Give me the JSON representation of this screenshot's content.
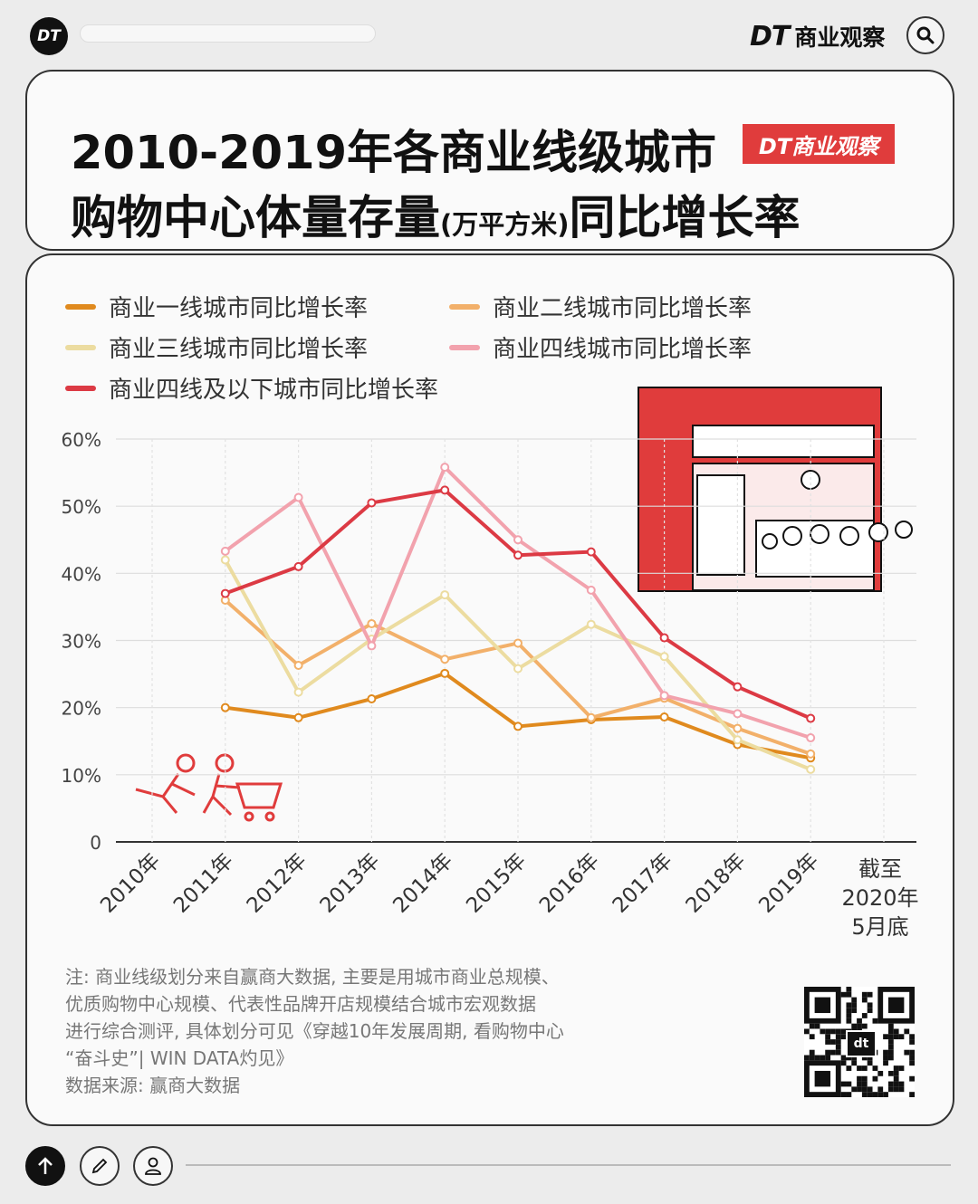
{
  "topbar": {
    "logo_text": "DT",
    "brand_dt": "DT",
    "brand_name": "商业观察",
    "search_icon": "search-icon"
  },
  "title": {
    "line1": "2010-2019年各商业线级城市",
    "line2_main": "购物中心体量存量",
    "line2_unit": "(万平方米)",
    "line2_tail": "同比增长率",
    "badge": "DT商业观察"
  },
  "chart_data": {
    "type": "line",
    "title": "2010-2019年各商业线级城市购物中心体量存量(万平方米)同比增长率",
    "categories": [
      "2010年",
      "2011年",
      "2012年",
      "2013年",
      "2014年",
      "2015年",
      "2016年",
      "2017年",
      "2018年",
      "2019年",
      "截至2020年5月底"
    ],
    "category_labels": [
      "2010年",
      "2011年",
      "2012年",
      "2013年",
      "2014年",
      "2015年",
      "2016年",
      "2017年",
      "2018年",
      "2019年"
    ],
    "last_category_lines": [
      "截至",
      "2020年",
      "5月底"
    ],
    "y_ticks": [
      "0",
      "10%",
      "20%",
      "30%",
      "40%",
      "50%",
      "60%"
    ],
    "ylim": [
      0,
      60
    ],
    "ylabel": "",
    "xlabel": "",
    "grid": true,
    "legend_position": "top",
    "series": [
      {
        "name": "商业一线城市同比增长率",
        "color": "#e08a1e",
        "values": [
          null,
          20.0,
          18.5,
          21.3,
          25.1,
          17.2,
          18.2,
          18.6,
          14.5,
          12.5,
          null
        ]
      },
      {
        "name": "商业二线城市同比增长率",
        "color": "#f2b06a",
        "values": [
          null,
          36.0,
          26.3,
          32.5,
          27.2,
          29.6,
          18.5,
          21.4,
          16.9,
          13.1,
          null
        ]
      },
      {
        "name": "商业三线城市同比增长率",
        "color": "#ecdca0",
        "values": [
          null,
          42.0,
          22.3,
          30.2,
          36.8,
          25.8,
          32.4,
          27.6,
          15.2,
          10.8,
          null
        ]
      },
      {
        "name": "商业四线城市同比增长率",
        "color": "#f2a2ad",
        "values": [
          null,
          43.3,
          51.3,
          29.2,
          55.8,
          45.0,
          37.5,
          21.8,
          19.1,
          15.5,
          null
        ]
      },
      {
        "name": "商业四线及以下城市同比增长率",
        "color": "#dc3a44",
        "values": [
          null,
          37.0,
          41.0,
          50.5,
          52.4,
          42.7,
          43.2,
          30.4,
          23.1,
          18.4,
          null
        ]
      }
    ]
  },
  "notes": {
    "line1": "注: 商业线级划分来自赢商大数据, 主要是用城市商业总规模、",
    "line2": "优质购物中心规模、代表性品牌开店规模结合城市宏观数据",
    "line3": "进行综合测评, 具体划分可见《穿越10年发展周期, 看购物中心",
    "line4": "“奋斗史”| WIN DATA灼见》",
    "source": "数据来源: 赢商大数据"
  },
  "qr": {
    "center_text": "dt"
  },
  "bottom_bar": {
    "up_icon": "arrow-up-icon",
    "edit_icon": "pencil-icon",
    "user_icon": "user-icon"
  }
}
